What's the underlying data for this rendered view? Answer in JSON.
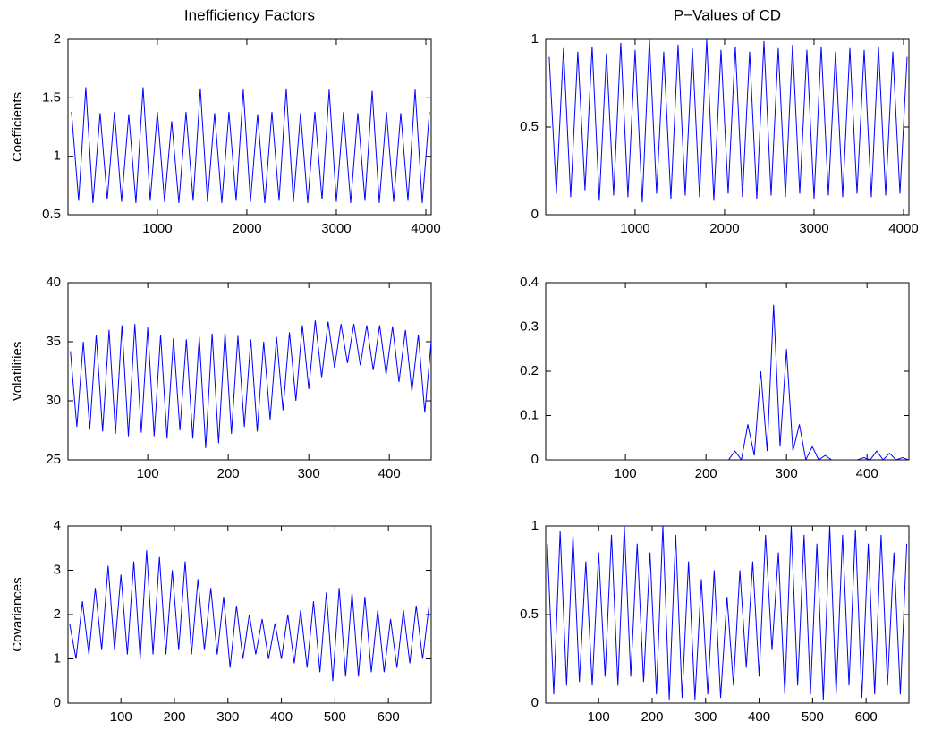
{
  "chart_data": [
    {
      "type": "line",
      "title": "Inefficiency Factors",
      "ylabel": "Coefficients",
      "color": "#0000ff",
      "x": [
        40,
        120,
        200,
        280,
        360,
        440,
        520,
        600,
        680,
        760,
        840,
        920,
        1000,
        1080,
        1160,
        1240,
        1320,
        1400,
        1480,
        1560,
        1640,
        1720,
        1800,
        1880,
        1960,
        2040,
        2120,
        2200,
        2280,
        2360,
        2440,
        2520,
        2600,
        2680,
        2760,
        2840,
        2920,
        3000,
        3080,
        3160,
        3240,
        3320,
        3400,
        3480,
        3560,
        3640,
        3720,
        3800,
        3880,
        3960,
        4040
      ],
      "values": [
        1.38,
        0.62,
        1.59,
        0.6,
        1.37,
        0.63,
        1.38,
        0.61,
        1.36,
        0.6,
        1.59,
        0.62,
        1.38,
        0.61,
        1.3,
        0.6,
        1.38,
        0.62,
        1.58,
        0.61,
        1.37,
        0.6,
        1.38,
        0.62,
        1.57,
        0.61,
        1.36,
        0.6,
        1.38,
        0.62,
        1.58,
        0.61,
        1.37,
        0.6,
        1.38,
        0.63,
        1.57,
        0.61,
        1.38,
        0.6,
        1.37,
        0.62,
        1.56,
        0.6,
        1.38,
        0.61,
        1.37,
        0.62,
        1.57,
        0.6,
        1.38
      ],
      "xlim": [
        1,
        4060
      ],
      "xticks": [
        1000,
        2000,
        3000,
        4000
      ],
      "ylim": [
        0.5,
        2
      ],
      "yticks": [
        0.5,
        1,
        1.5,
        2
      ]
    },
    {
      "type": "line",
      "title": "P−Values of CD",
      "color": "#0000ff",
      "x": [
        40,
        120,
        200,
        280,
        360,
        440,
        520,
        600,
        680,
        760,
        840,
        920,
        1000,
        1080,
        1160,
        1240,
        1320,
        1400,
        1480,
        1560,
        1640,
        1720,
        1800,
        1880,
        1960,
        2040,
        2120,
        2200,
        2280,
        2360,
        2440,
        2520,
        2600,
        2680,
        2760,
        2840,
        2920,
        3000,
        3080,
        3160,
        3240,
        3320,
        3400,
        3480,
        3560,
        3640,
        3720,
        3800,
        3880,
        3960,
        4040
      ],
      "values": [
        0.9,
        0.12,
        0.95,
        0.1,
        0.93,
        0.14,
        0.96,
        0.08,
        0.92,
        0.11,
        0.98,
        0.1,
        0.94,
        0.07,
        1.0,
        0.12,
        0.93,
        0.09,
        0.97,
        0.11,
        0.95,
        0.1,
        1.0,
        0.08,
        0.94,
        0.12,
        0.96,
        0.1,
        0.93,
        0.09,
        0.99,
        0.11,
        0.95,
        0.1,
        0.97,
        0.12,
        0.94,
        0.09,
        0.96,
        0.11,
        0.93,
        0.1,
        0.95,
        0.12,
        0.94,
        0.1,
        0.96,
        0.11,
        0.93,
        0.12,
        0.9
      ],
      "xlim": [
        1,
        4060
      ],
      "xticks": [
        1000,
        2000,
        3000,
        4000
      ],
      "ylim": [
        0,
        1
      ],
      "yticks": [
        0,
        0.5,
        1
      ]
    },
    {
      "type": "line",
      "ylabel": "Volatilities",
      "color": "#0000ff",
      "x": [
        4,
        12,
        20,
        28,
        36,
        44,
        52,
        60,
        68,
        76,
        84,
        92,
        100,
        108,
        116,
        124,
        132,
        140,
        148,
        156,
        164,
        172,
        180,
        188,
        196,
        204,
        212,
        220,
        228,
        236,
        244,
        252,
        260,
        268,
        276,
        284,
        292,
        300,
        308,
        316,
        324,
        332,
        340,
        348,
        356,
        364,
        372,
        380,
        388,
        396,
        404,
        412,
        420,
        428,
        436,
        444,
        452
      ],
      "values": [
        34.2,
        27.8,
        35.0,
        27.6,
        35.6,
        27.4,
        36.0,
        27.2,
        36.4,
        27.0,
        36.5,
        27.3,
        36.2,
        27.0,
        35.6,
        26.8,
        35.3,
        27.5,
        35.2,
        26.8,
        35.4,
        26.0,
        35.7,
        26.4,
        35.8,
        27.2,
        35.5,
        27.8,
        35.2,
        27.4,
        35.0,
        28.4,
        35.4,
        29.2,
        35.8,
        30.0,
        36.4,
        31.0,
        36.8,
        32.0,
        36.7,
        32.8,
        36.5,
        33.2,
        36.5,
        33.0,
        36.4,
        32.6,
        36.4,
        32.2,
        36.3,
        31.6,
        36.0,
        30.8,
        35.6,
        29.0,
        35.0
      ],
      "xlim": [
        1,
        452
      ],
      "xticks": [
        100,
        200,
        300,
        400
      ],
      "ylim": [
        25,
        40
      ],
      "yticks": [
        25,
        30,
        35,
        40
      ]
    },
    {
      "type": "line",
      "color": "#0000ff",
      "x": [
        4,
        12,
        20,
        28,
        36,
        44,
        52,
        60,
        68,
        76,
        84,
        92,
        100,
        108,
        116,
        124,
        132,
        140,
        148,
        156,
        164,
        172,
        180,
        188,
        196,
        204,
        212,
        220,
        228,
        236,
        244,
        252,
        260,
        268,
        276,
        284,
        292,
        300,
        308,
        316,
        324,
        332,
        340,
        348,
        356,
        364,
        372,
        380,
        388,
        396,
        404,
        412,
        420,
        428,
        436,
        444,
        452
      ],
      "values": [
        0,
        0,
        0,
        0,
        0,
        0,
        0,
        0,
        0,
        0,
        0,
        0,
        0,
        0,
        0,
        0,
        0,
        0,
        0,
        0,
        0,
        0,
        0,
        0,
        0,
        0,
        0,
        0,
        0,
        0.02,
        0,
        0.08,
        0.01,
        0.2,
        0.02,
        0.35,
        0.03,
        0.25,
        0.02,
        0.08,
        0,
        0.03,
        0,
        0.01,
        0,
        0,
        0,
        0,
        0,
        0.005,
        0,
        0.02,
        0,
        0.015,
        0,
        0.005,
        0
      ],
      "xlim": [
        1,
        452
      ],
      "xticks": [
        100,
        200,
        300,
        400
      ],
      "ylim": [
        0,
        0.4
      ],
      "yticks": [
        0,
        0.1,
        0.2,
        0.3,
        0.4
      ]
    },
    {
      "type": "line",
      "ylabel": "Covariances",
      "color": "#0000ff",
      "x": [
        4,
        16,
        28,
        40,
        52,
        64,
        76,
        88,
        100,
        112,
        124,
        136,
        148,
        160,
        172,
        184,
        196,
        208,
        220,
        232,
        244,
        256,
        268,
        280,
        292,
        304,
        316,
        328,
        340,
        352,
        364,
        376,
        388,
        400,
        412,
        424,
        436,
        448,
        460,
        472,
        484,
        496,
        508,
        520,
        532,
        544,
        556,
        568,
        580,
        592,
        604,
        616,
        628,
        640,
        652,
        664,
        676
      ],
      "values": [
        1.8,
        1.0,
        2.3,
        1.1,
        2.6,
        1.2,
        3.1,
        1.2,
        2.9,
        1.1,
        3.2,
        1.0,
        3.45,
        1.1,
        3.3,
        1.1,
        3.0,
        1.2,
        3.2,
        1.1,
        2.8,
        1.2,
        2.6,
        1.1,
        2.4,
        0.8,
        2.2,
        1.0,
        2.0,
        1.1,
        1.9,
        1.0,
        1.8,
        1.0,
        2.0,
        0.9,
        2.1,
        0.8,
        2.3,
        0.7,
        2.5,
        0.5,
        2.6,
        0.6,
        2.5,
        0.6,
        2.4,
        0.7,
        2.1,
        0.7,
        1.9,
        0.8,
        2.1,
        0.9,
        2.2,
        1.0,
        2.2
      ],
      "xlim": [
        1,
        680
      ],
      "xticks": [
        100,
        200,
        300,
        400,
        500,
        600
      ],
      "ylim": [
        0,
        4
      ],
      "yticks": [
        0,
        1,
        2,
        3,
        4
      ]
    },
    {
      "type": "line",
      "color": "#0000ff",
      "x": [
        4,
        16,
        28,
        40,
        52,
        64,
        76,
        88,
        100,
        112,
        124,
        136,
        148,
        160,
        172,
        184,
        196,
        208,
        220,
        232,
        244,
        256,
        268,
        280,
        292,
        304,
        316,
        328,
        340,
        352,
        364,
        376,
        388,
        400,
        412,
        424,
        436,
        448,
        460,
        472,
        484,
        496,
        508,
        520,
        532,
        544,
        556,
        568,
        580,
        592,
        604,
        616,
        628,
        640,
        652,
        664,
        676
      ],
      "values": [
        0.9,
        0.05,
        0.97,
        0.1,
        0.95,
        0.12,
        0.8,
        0.1,
        0.85,
        0.15,
        0.95,
        0.1,
        1.0,
        0.15,
        0.9,
        0.12,
        0.85,
        0.05,
        1.0,
        0.02,
        0.95,
        0.03,
        0.8,
        0.02,
        0.7,
        0.05,
        0.75,
        0.03,
        0.6,
        0.1,
        0.75,
        0.2,
        0.8,
        0.15,
        0.95,
        0.3,
        0.85,
        0.05,
        1.0,
        0.1,
        0.95,
        0.05,
        0.9,
        0.02,
        1.0,
        0.05,
        0.95,
        0.1,
        0.98,
        0.03,
        0.9,
        0.05,
        0.95,
        0.1,
        0.85,
        0.05,
        0.9
      ],
      "xlim": [
        1,
        680
      ],
      "xticks": [
        100,
        200,
        300,
        400,
        500,
        600
      ],
      "ylim": [
        0,
        1
      ],
      "yticks": [
        0,
        0.5,
        1
      ]
    }
  ]
}
